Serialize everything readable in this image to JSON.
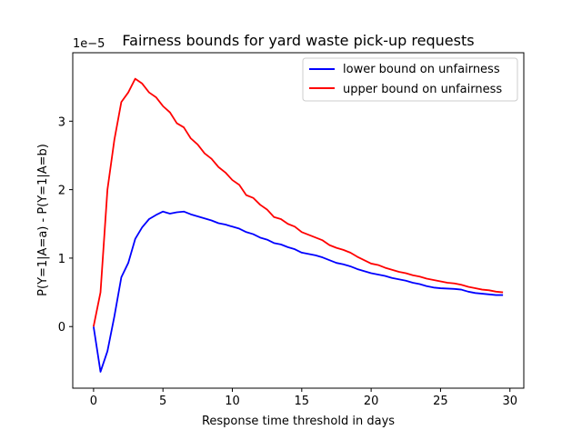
{
  "chart_data": {
    "type": "line",
    "title": "Fairness bounds for yard waste pick-up requests",
    "xlabel": "Response time threshold in days",
    "ylabel": "P(Y=1|A=a) - P(Y=1|A=b)",
    "y_offset_label": "1e−5",
    "y_scale": 1e-05,
    "xlim": [
      -1.5,
      31
    ],
    "ylim": [
      -0.9,
      4.0
    ],
    "xticks": [
      0,
      5,
      10,
      15,
      20,
      25,
      30
    ],
    "yticks": [
      0,
      1,
      2,
      3
    ],
    "grid": false,
    "legend_position": "upper right",
    "x": [
      0,
      0.5,
      1,
      1.5,
      2,
      2.5,
      3,
      3.5,
      4,
      4.5,
      5,
      5.5,
      6,
      6.5,
      7,
      7.5,
      8,
      8.5,
      9,
      9.5,
      10,
      10.5,
      11,
      11.5,
      12,
      12.5,
      13,
      13.5,
      14,
      14.5,
      15,
      15.5,
      16,
      16.5,
      17,
      17.5,
      18,
      18.5,
      19,
      19.5,
      20,
      20.5,
      21,
      21.5,
      22,
      22.5,
      23,
      23.5,
      24,
      24.5,
      25,
      25.5,
      26,
      26.5,
      27,
      27.5,
      28,
      28.5,
      29,
      29.5
    ],
    "series": [
      {
        "name": "lower bound on unfairness",
        "color": "#0000ff",
        "values": [
          0.0,
          -0.66,
          -0.36,
          0.15,
          0.72,
          0.93,
          1.28,
          1.45,
          1.57,
          1.63,
          1.68,
          1.65,
          1.67,
          1.68,
          1.64,
          1.61,
          1.58,
          1.55,
          1.51,
          1.49,
          1.46,
          1.43,
          1.38,
          1.35,
          1.3,
          1.27,
          1.22,
          1.2,
          1.16,
          1.13,
          1.08,
          1.06,
          1.04,
          1.01,
          0.97,
          0.93,
          0.91,
          0.88,
          0.84,
          0.81,
          0.78,
          0.76,
          0.74,
          0.71,
          0.69,
          0.67,
          0.64,
          0.62,
          0.59,
          0.57,
          0.56,
          0.555,
          0.55,
          0.54,
          0.51,
          0.49,
          0.48,
          0.47,
          0.46,
          0.46
        ]
      },
      {
        "name": "upper bound on unfairness",
        "color": "#ff0000",
        "values": [
          0.0,
          0.5,
          2.0,
          2.73,
          3.28,
          3.42,
          3.62,
          3.55,
          3.42,
          3.35,
          3.22,
          3.13,
          2.97,
          2.91,
          2.75,
          2.66,
          2.53,
          2.45,
          2.33,
          2.25,
          2.14,
          2.07,
          1.92,
          1.88,
          1.78,
          1.71,
          1.6,
          1.57,
          1.5,
          1.46,
          1.38,
          1.34,
          1.3,
          1.26,
          1.19,
          1.15,
          1.12,
          1.08,
          1.02,
          0.97,
          0.92,
          0.9,
          0.86,
          0.83,
          0.8,
          0.78,
          0.75,
          0.73,
          0.7,
          0.68,
          0.66,
          0.64,
          0.63,
          0.61,
          0.58,
          0.56,
          0.54,
          0.53,
          0.51,
          0.5
        ]
      }
    ]
  }
}
